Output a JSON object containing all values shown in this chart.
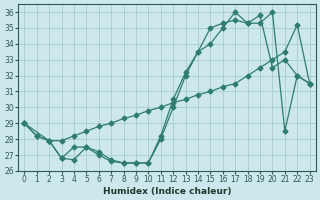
{
  "xlabel": "Humidex (Indice chaleur)",
  "bg_color": "#cce8ec",
  "grid_color": "#aacccc",
  "line_color": "#2e7d6e",
  "xlim": [
    -0.5,
    23.5
  ],
  "ylim": [
    26,
    36.5
  ],
  "yticks": [
    26,
    27,
    28,
    29,
    30,
    31,
    32,
    33,
    34,
    35,
    36
  ],
  "xticks": [
    0,
    1,
    2,
    3,
    4,
    5,
    6,
    7,
    8,
    9,
    10,
    11,
    12,
    13,
    14,
    15,
    16,
    17,
    18,
    19,
    20,
    21,
    22,
    23
  ],
  "series1_x": [
    0,
    1,
    2,
    3,
    4,
    5,
    6,
    7,
    8,
    9,
    10,
    11,
    12,
    13,
    14,
    15,
    16,
    17,
    18,
    19,
    20,
    21,
    22,
    23
  ],
  "series1_y": [
    29.0,
    28.2,
    27.9,
    27.9,
    28.2,
    28.5,
    28.8,
    29.0,
    29.3,
    29.5,
    29.8,
    30.0,
    30.3,
    30.5,
    30.8,
    31.0,
    31.3,
    31.5,
    32.0,
    32.5,
    33.0,
    33.5,
    35.2,
    31.5
  ],
  "series2_x": [
    0,
    1,
    2,
    3,
    4,
    5,
    6,
    7,
    8,
    9,
    10,
    11,
    12,
    13,
    14,
    15,
    16,
    17,
    18,
    19,
    20,
    21,
    22,
    23
  ],
  "series2_y": [
    29.0,
    28.2,
    27.9,
    26.8,
    26.7,
    27.5,
    27.2,
    26.7,
    26.5,
    26.5,
    26.5,
    28.0,
    30.0,
    32.0,
    33.5,
    35.0,
    35.3,
    35.5,
    35.3,
    35.8,
    32.5,
    33.0,
    32.0,
    31.5
  ],
  "series3_x": [
    0,
    2,
    3,
    4,
    5,
    6,
    7,
    8,
    9,
    10,
    11,
    12,
    13,
    14,
    15,
    16,
    17,
    18,
    19,
    20,
    21,
    22,
    23
  ],
  "series3_y": [
    29.0,
    27.9,
    26.8,
    27.5,
    27.5,
    27.0,
    26.6,
    26.5,
    26.5,
    26.5,
    28.2,
    30.5,
    32.2,
    33.5,
    34.0,
    35.0,
    36.0,
    35.3,
    35.3,
    36.0,
    28.5,
    32.0,
    31.5
  ]
}
